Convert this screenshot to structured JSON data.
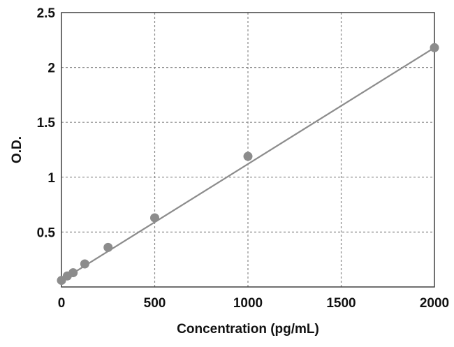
{
  "chart_data": {
    "type": "scatter",
    "title": "",
    "xlabel": "Concentration (pg/mL)",
    "ylabel": "O.D.",
    "xlim": [
      0,
      2000
    ],
    "ylim": [
      0,
      2.5
    ],
    "x_ticks": [
      0,
      500,
      1000,
      1500,
      2000
    ],
    "y_ticks": [
      0.5,
      1,
      1.5,
      2,
      2.5
    ],
    "x_tick_labels": [
      "0",
      "500",
      "1000",
      "1500",
      "2000"
    ],
    "y_tick_labels": [
      "0.5",
      "1",
      "1.5",
      "2",
      "2.5"
    ],
    "grid": true,
    "legend": "none",
    "point_color": "#8c8c8c",
    "line_color": "#8c8c8c",
    "series": [
      {
        "x": [
          0,
          31.25,
          62.5,
          125,
          250,
          500,
          1000,
          2000
        ],
        "y": [
          0.06,
          0.1,
          0.13,
          0.21,
          0.36,
          0.63,
          1.19,
          2.18
        ]
      }
    ],
    "fit_line": {
      "x": [
        0,
        2000
      ],
      "y": [
        0.06,
        2.18
      ]
    }
  }
}
